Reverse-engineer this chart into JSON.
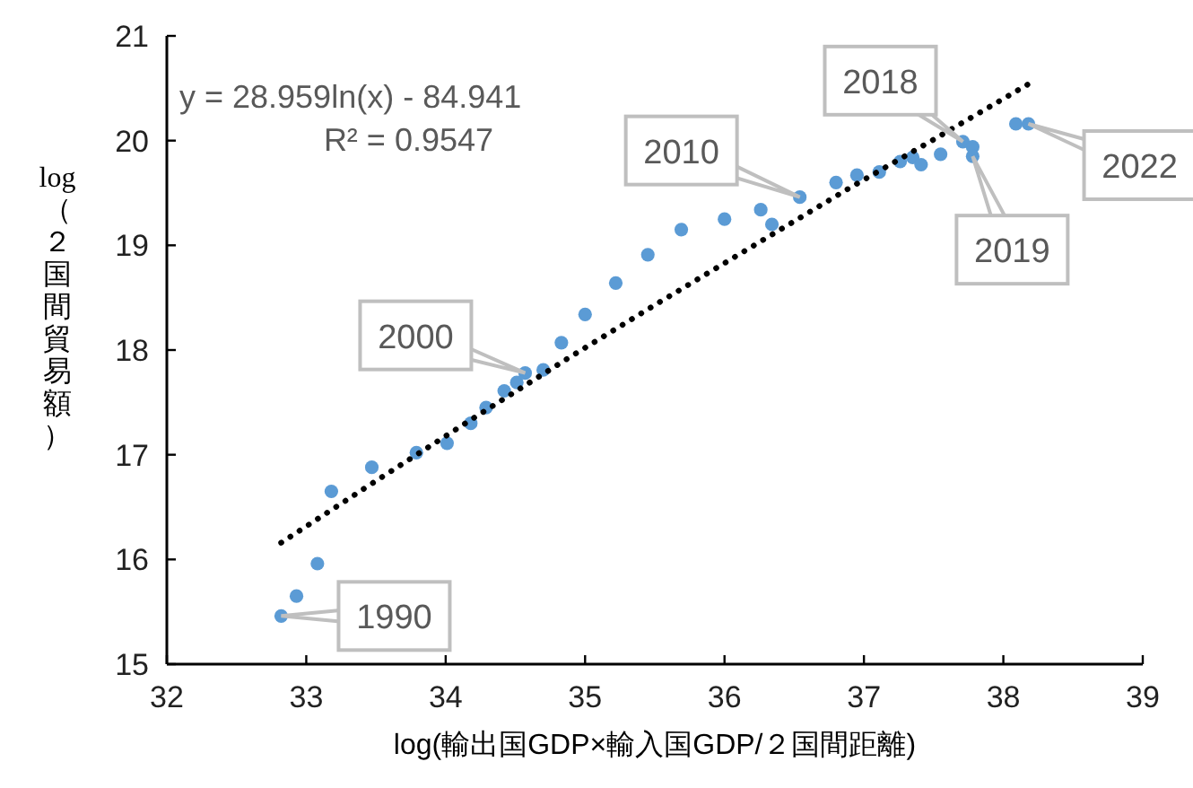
{
  "chart_data": {
    "type": "scatter",
    "xlabel": "log(輸出国GDP×輸入国GDP/２国間距離)",
    "ylabel": "log（２国間貿易額）",
    "xlim": [
      32,
      39
    ],
    "xticks": [
      32,
      33,
      34,
      35,
      36,
      37,
      38,
      39
    ],
    "ylim": [
      15,
      21
    ],
    "yticks": [
      15,
      16,
      17,
      18,
      19,
      20,
      21
    ],
    "grid": false,
    "marker": "circle",
    "series": [
      {
        "color": "#5b9bd5",
        "x": [
          32.82,
          32.93,
          33.08,
          33.18,
          33.47,
          33.79,
          34.01,
          34.18,
          34.29,
          34.42,
          34.51,
          34.57,
          34.7,
          34.83,
          35.0,
          35.22,
          35.45,
          35.69,
          36.0,
          36.26,
          36.34,
          36.54,
          36.8,
          36.95,
          37.11,
          37.26,
          37.35,
          37.41,
          37.55,
          37.71,
          37.78,
          37.78,
          38.09,
          38.18
        ],
        "values": [
          15.46,
          15.65,
          15.96,
          16.65,
          16.88,
          17.02,
          17.11,
          17.3,
          17.45,
          17.61,
          17.69,
          17.78,
          17.81,
          18.07,
          18.34,
          18.64,
          18.91,
          19.15,
          19.25,
          19.34,
          19.2,
          19.46,
          19.6,
          19.67,
          19.7,
          19.8,
          19.84,
          19.77,
          19.87,
          19.99,
          19.94,
          19.85,
          20.16,
          20.16
        ]
      },
      {
        "type": "line",
        "color": "#000000",
        "line_style": "dotted",
        "marker": "none",
        "x": [
          32.82,
          33.5,
          34.2,
          34.9,
          35.5,
          36.2,
          36.9,
          37.5,
          38.18
        ],
        "values": [
          16.16,
          16.75,
          17.35,
          17.94,
          18.43,
          18.99,
          19.55,
          20.01,
          20.54
        ]
      }
    ],
    "annotations": [
      "y = 28.959ln(x) - 84.941",
      "R² = 0.9547",
      {
        "text": "1990",
        "x": 32.82,
        "y": 15.46
      },
      {
        "text": "2000",
        "x": 34.57,
        "y": 17.78
      },
      {
        "text": "2010",
        "x": 36.54,
        "y": 19.46
      },
      {
        "text": "2018",
        "x": 37.71,
        "y": 19.99
      },
      {
        "text": "2019",
        "x": 37.78,
        "y": 19.85
      },
      {
        "text": "2022",
        "x": 38.18,
        "y": 20.16
      }
    ]
  }
}
